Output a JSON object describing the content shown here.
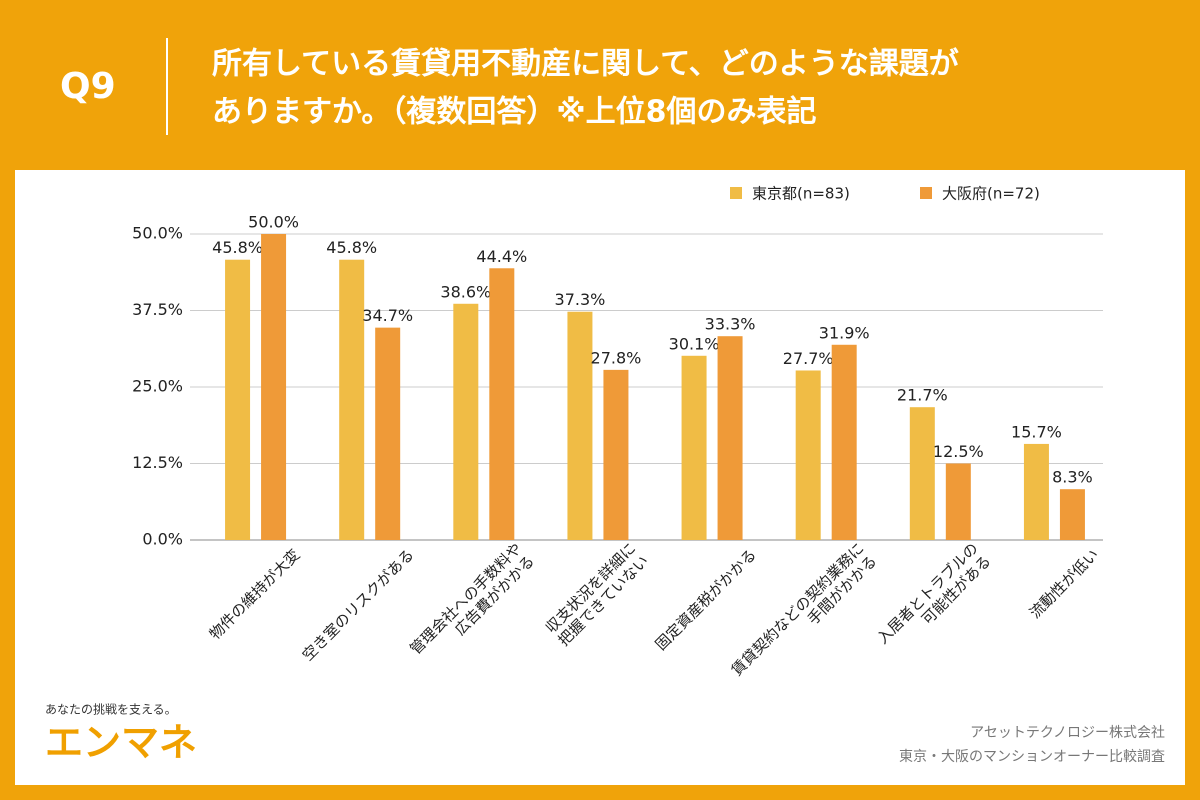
{
  "question_label": "Q9",
  "brand": {
    "tagline": "あなたの挑戦を支える。",
    "name": "エンマネ"
  },
  "source": [
    "アセットテクノロジー株式会社",
    "東京・大阪のマンションオーナー比較調査"
  ],
  "chart_data": {
    "type": "bar",
    "title": [
      "所有している賃貸用不動産に関して、どのような課題が",
      "ありますか。（複数回答）※上位8個のみ表記"
    ],
    "categories": [
      [
        "物件の維持が大変"
      ],
      [
        "空き室のリスクがある"
      ],
      [
        "管理会社への手数料や",
        "広告費がかかる"
      ],
      [
        "収支状況を詳細に",
        "把握できていない"
      ],
      [
        "固定資産税がかかる"
      ],
      [
        "賃貸契約などの契約業務に",
        "手間がかかる"
      ],
      [
        "入居者とトラブルの",
        "可能性がある"
      ],
      [
        "流動性が低い"
      ]
    ],
    "series": [
      {
        "name": "東京都(n=83)",
        "color": "#f0bc45",
        "values": [
          45.8,
          45.8,
          38.6,
          37.3,
          30.1,
          27.7,
          21.7,
          15.7
        ],
        "value_labels": [
          "45.8%",
          "45.8%",
          "38.6%",
          "37.3%",
          "30.1%",
          "27.7%",
          "21.7%",
          "15.7%"
        ]
      },
      {
        "name": "大阪府(n=72)",
        "color": "#ef9a38",
        "values": [
          50.0,
          34.7,
          44.4,
          27.8,
          33.3,
          31.9,
          12.5,
          8.3
        ],
        "value_labels": [
          "50.0%",
          "34.7%",
          "44.4%",
          "27.8%",
          "33.3%",
          "31.9%",
          "12.5%",
          "8.3%"
        ]
      }
    ],
    "ylim": [
      0,
      50
    ],
    "yticks": [
      {
        "value": 0,
        "label": "0.0%"
      },
      {
        "value": 12.5,
        "label": "12.5%"
      },
      {
        "value": 25,
        "label": "25.0%"
      },
      {
        "value": 37.5,
        "label": "37.5%"
      },
      {
        "value": 50,
        "label": "50.0%"
      }
    ],
    "grid": true
  }
}
